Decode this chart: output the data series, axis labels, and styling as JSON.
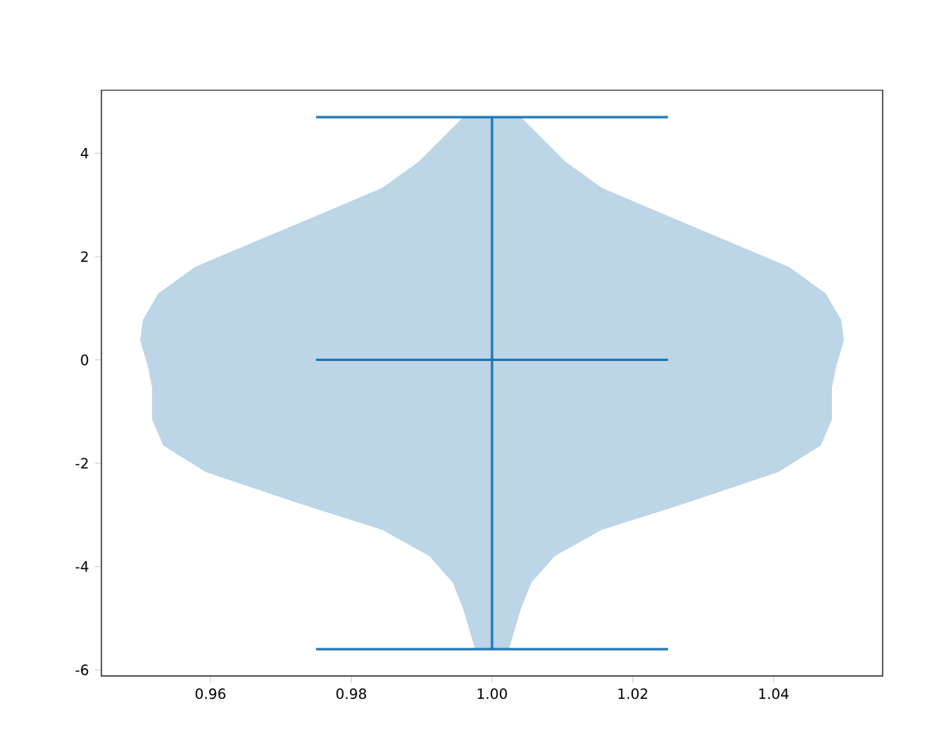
{
  "chart_data": {
    "type": "area",
    "xlim": [
      0.9445,
      1.0555
    ],
    "ylim": [
      -6.12,
      5.22
    ],
    "xticks": [
      0.96,
      0.98,
      {
        "value": 1.0,
        "label": "1.00"
      },
      1.02,
      1.04
    ],
    "yticks": [
      -6,
      -4,
      -2,
      0,
      2,
      4
    ],
    "grid": false,
    "series": [
      {
        "color": "#bcd5e7",
        "x": [
          0.9959,
          0.9896,
          0.9844,
          0.9756,
          0.9667,
          0.9578,
          0.9526,
          0.9504,
          0.95,
          0.9511,
          0.9517,
          0.9517,
          0.9533,
          0.9593,
          0.9726,
          0.9844,
          0.9911,
          0.9944,
          0.9959,
          0.9976,
          1.0024,
          1.0041,
          1.0056,
          1.0089,
          1.0156,
          1.0274,
          1.0407,
          1.0467,
          1.0483,
          1.0483,
          1.0489,
          1.05,
          1.0496,
          1.0474,
          1.0422,
          1.0333,
          1.0244,
          1.0156,
          1.0104,
          1.0041
        ],
        "values": [
          4.7,
          3.84,
          3.33,
          2.82,
          2.31,
          1.8,
          1.29,
          0.78,
          0.38,
          -0.13,
          -0.54,
          -1.15,
          -1.66,
          -2.17,
          -2.78,
          -3.29,
          -3.8,
          -4.31,
          -4.82,
          -5.6,
          -5.6,
          -4.82,
          -4.31,
          -3.8,
          -3.29,
          -2.78,
          -2.17,
          -1.66,
          -1.15,
          -0.54,
          -0.13,
          0.38,
          0.78,
          1.29,
          1.8,
          2.31,
          2.82,
          3.33,
          3.84,
          4.7
        ]
      },
      {
        "type": "line",
        "color": "#1f77b4",
        "x": [
          0.975,
          1.025
        ],
        "values": [
          4.7,
          4.7
        ]
      },
      {
        "type": "line",
        "color": "#1f77b4",
        "x": [
          0.975,
          1.025
        ],
        "values": [
          0,
          0
        ]
      },
      {
        "type": "line",
        "color": "#1f77b4",
        "x": [
          0.975,
          1.025
        ],
        "values": [
          -5.6,
          -5.6
        ]
      },
      {
        "type": "line",
        "color": "#1f77b4",
        "x": [
          1.0,
          1.0
        ],
        "values": [
          -5.6,
          4.7
        ]
      }
    ]
  }
}
